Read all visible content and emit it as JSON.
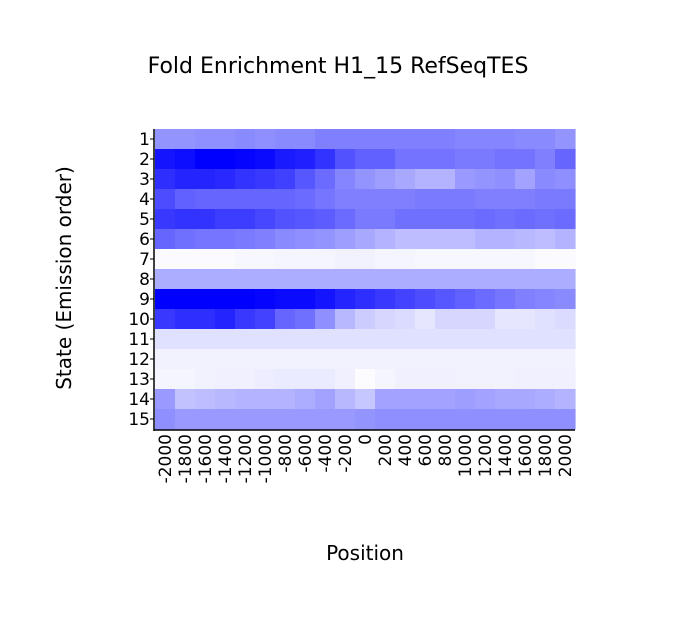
{
  "chart_data": {
    "type": "heatmap",
    "title": "Fold Enrichment H1_15 RefSeqTES",
    "xlabel": "Position",
    "ylabel": "State (Emission order)",
    "x_tick_labels": [
      "-2000",
      "-1800",
      "-1600",
      "-1400",
      "-1200",
      "-1000",
      "-800",
      "-600",
      "-400",
      "-200",
      "0",
      "200",
      "400",
      "600",
      "800",
      "1000",
      "1200",
      "1400",
      "1600",
      "1800",
      "2000"
    ],
    "y_tick_labels": [
      "1",
      "2",
      "3",
      "4",
      "5",
      "6",
      "7",
      "8",
      "9",
      "10",
      "11",
      "12",
      "13",
      "14",
      "15"
    ],
    "rows": 15,
    "columns": 21,
    "color_low": "#ffffff",
    "color_high": "#0000ff",
    "values": [
      [
        0.42,
        0.42,
        0.44,
        0.44,
        0.46,
        0.44,
        0.46,
        0.46,
        0.5,
        0.5,
        0.5,
        0.5,
        0.5,
        0.5,
        0.5,
        0.48,
        0.48,
        0.48,
        0.46,
        0.46,
        0.42
      ],
      [
        0.92,
        0.95,
        1.0,
        1.0,
        0.98,
        0.96,
        0.9,
        0.88,
        0.8,
        0.68,
        0.62,
        0.62,
        0.55,
        0.55,
        0.55,
        0.52,
        0.52,
        0.55,
        0.55,
        0.5,
        0.6
      ],
      [
        0.82,
        0.86,
        0.86,
        0.84,
        0.8,
        0.78,
        0.75,
        0.66,
        0.58,
        0.48,
        0.42,
        0.38,
        0.34,
        0.3,
        0.3,
        0.4,
        0.42,
        0.44,
        0.36,
        0.46,
        0.44
      ],
      [
        0.7,
        0.62,
        0.6,
        0.6,
        0.6,
        0.6,
        0.6,
        0.58,
        0.54,
        0.5,
        0.5,
        0.5,
        0.5,
        0.52,
        0.52,
        0.52,
        0.5,
        0.5,
        0.5,
        0.52,
        0.52
      ],
      [
        0.78,
        0.8,
        0.8,
        0.76,
        0.76,
        0.72,
        0.68,
        0.66,
        0.64,
        0.58,
        0.52,
        0.52,
        0.56,
        0.56,
        0.56,
        0.56,
        0.58,
        0.56,
        0.58,
        0.56,
        0.58
      ],
      [
        0.6,
        0.56,
        0.54,
        0.54,
        0.52,
        0.5,
        0.46,
        0.44,
        0.42,
        0.38,
        0.34,
        0.3,
        0.26,
        0.26,
        0.26,
        0.26,
        0.3,
        0.3,
        0.28,
        0.26,
        0.3
      ],
      [
        0.02,
        0.02,
        0.02,
        0.02,
        0.03,
        0.03,
        0.04,
        0.04,
        0.04,
        0.05,
        0.05,
        0.04,
        0.04,
        0.03,
        0.03,
        0.03,
        0.03,
        0.03,
        0.03,
        0.02,
        0.02
      ],
      [
        0.32,
        0.32,
        0.32,
        0.32,
        0.32,
        0.32,
        0.32,
        0.32,
        0.32,
        0.32,
        0.32,
        0.32,
        0.32,
        0.32,
        0.32,
        0.32,
        0.32,
        0.32,
        0.32,
        0.32,
        0.32
      ],
      [
        1.0,
        1.0,
        1.0,
        1.0,
        1.0,
        0.98,
        0.96,
        0.96,
        0.92,
        0.86,
        0.82,
        0.78,
        0.74,
        0.7,
        0.66,
        0.62,
        0.58,
        0.54,
        0.5,
        0.48,
        0.46
      ],
      [
        0.78,
        0.82,
        0.82,
        0.86,
        0.78,
        0.74,
        0.6,
        0.56,
        0.44,
        0.28,
        0.2,
        0.16,
        0.14,
        0.1,
        0.16,
        0.16,
        0.16,
        0.1,
        0.1,
        0.12,
        0.14
      ],
      [
        0.12,
        0.12,
        0.12,
        0.12,
        0.12,
        0.12,
        0.12,
        0.12,
        0.12,
        0.12,
        0.12,
        0.12,
        0.12,
        0.12,
        0.12,
        0.12,
        0.12,
        0.12,
        0.12,
        0.12,
        0.12
      ],
      [
        0.05,
        0.05,
        0.05,
        0.05,
        0.05,
        0.05,
        0.05,
        0.05,
        0.05,
        0.05,
        0.05,
        0.05,
        0.05,
        0.05,
        0.05,
        0.05,
        0.05,
        0.05,
        0.05,
        0.05,
        0.05
      ],
      [
        0.04,
        0.04,
        0.05,
        0.06,
        0.06,
        0.07,
        0.08,
        0.08,
        0.08,
        0.06,
        0.01,
        0.04,
        0.06,
        0.06,
        0.06,
        0.05,
        0.05,
        0.05,
        0.06,
        0.06,
        0.06
      ],
      [
        0.4,
        0.24,
        0.26,
        0.28,
        0.3,
        0.3,
        0.3,
        0.32,
        0.36,
        0.28,
        0.22,
        0.36,
        0.36,
        0.36,
        0.36,
        0.38,
        0.36,
        0.34,
        0.34,
        0.32,
        0.3
      ],
      [
        0.44,
        0.4,
        0.4,
        0.4,
        0.4,
        0.4,
        0.4,
        0.4,
        0.4,
        0.4,
        0.42,
        0.44,
        0.44,
        0.44,
        0.44,
        0.44,
        0.44,
        0.44,
        0.44,
        0.44,
        0.44
      ]
    ]
  }
}
